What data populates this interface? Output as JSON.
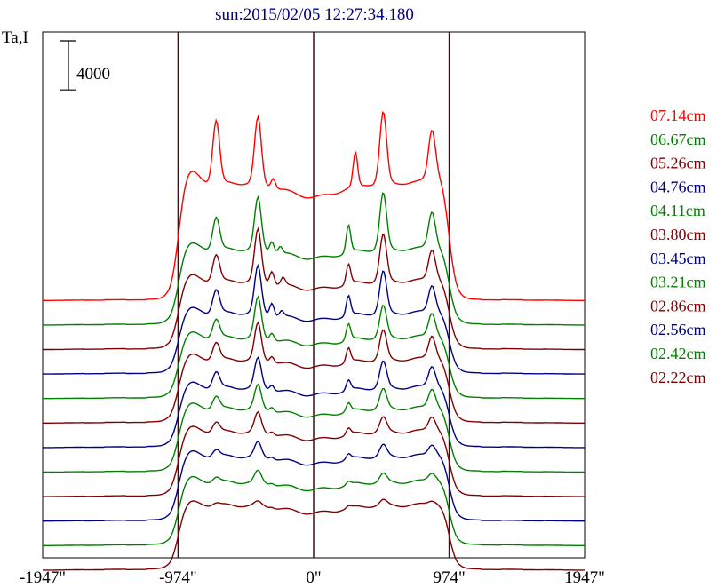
{
  "chart_data": {
    "type": "line",
    "title": "sun:2015/02/05 12:27:34.180",
    "ylabel": "Ta,I",
    "xlabel": "",
    "scale_bar_label": "4000",
    "scale_bar_value": 4000,
    "x_ticks": [
      -1947,
      -974,
      0,
      974,
      1947
    ],
    "x_tick_labels": [
      "-1947\"",
      "-974\"",
      "0\"",
      "974\"",
      "1947\""
    ],
    "xlim": [
      -1947,
      1947
    ],
    "vertical_lines_at": [
      -974,
      0,
      974
    ],
    "grid": false,
    "legend_position": "right",
    "series_shape_units": "thousands of Ta,I",
    "series": [
      {
        "name": "07.14cm",
        "color": "#ff0000",
        "offset": 20700,
        "shape": {
          "disk": 9.6,
          "limb": 1.2,
          "peaks": [
            [
              -700,
              10.2
            ],
            [
              -400,
              10.8
            ],
            [
              -290,
              1.6
            ],
            [
              300,
              5.5
            ],
            [
              500,
              11.5
            ],
            [
              850,
              7.3
            ]
          ]
        }
      },
      {
        "name": "06.67cm",
        "color": "#007f00",
        "offset": 18700,
        "shape": {
          "disk": 6.2,
          "limb": 0.6,
          "peaks": [
            [
              -700,
              5.2
            ],
            [
              -400,
              8.4
            ],
            [
              -300,
              1.8
            ],
            [
              -240,
              1.1
            ],
            [
              250,
              4.4
            ],
            [
              500,
              9.1
            ],
            [
              850,
              5.5
            ]
          ]
        }
      },
      {
        "name": "05.26cm",
        "color": "#7f0000",
        "offset": 16700,
        "shape": {
          "disk": 5.6,
          "limb": 0.6,
          "peaks": [
            [
              -700,
              4.3
            ],
            [
              -400,
              8.4
            ],
            [
              -300,
              2.1
            ],
            [
              -220,
              1.2
            ],
            [
              250,
              3.2
            ],
            [
              500,
              7.5
            ],
            [
              850,
              4.5
            ]
          ]
        }
      },
      {
        "name": "04.76cm",
        "color": "#000080",
        "offset": 14700,
        "shape": {
          "disk": 5.0,
          "limb": 0.5,
          "peaks": [
            [
              -700,
              3.8
            ],
            [
              -400,
              7.6
            ],
            [
              -300,
              2.1
            ],
            [
              -230,
              0.9
            ],
            [
              250,
              3.2
            ],
            [
              500,
              6.7
            ],
            [
              850,
              4.0
            ]
          ]
        }
      },
      {
        "name": "04.11cm",
        "color": "#007f00",
        "offset": 12700,
        "shape": {
          "disk": 5.0,
          "limb": 0.5,
          "peaks": [
            [
              -700,
              3.0
            ],
            [
              -400,
              6.5
            ],
            [
              -300,
              1.2
            ],
            [
              250,
              2.6
            ],
            [
              500,
              5.1
            ],
            [
              850,
              3.5
            ]
          ]
        }
      },
      {
        "name": "03.80cm",
        "color": "#7f0000",
        "offset": 10700,
        "shape": {
          "disk": 5.2,
          "limb": 0.5,
          "peaks": [
            [
              -700,
              2.8
            ],
            [
              -400,
              5.9
            ],
            [
              -300,
              1.0
            ],
            [
              250,
              2.3
            ],
            [
              500,
              4.7
            ],
            [
              850,
              3.4
            ]
          ]
        }
      },
      {
        "name": "03.45cm",
        "color": "#000080",
        "offset": 8700,
        "shape": {
          "disk": 4.9,
          "limb": 0.5,
          "peaks": [
            [
              -700,
              2.6
            ],
            [
              -400,
              4.8
            ],
            [
              -300,
              0.9
            ],
            [
              250,
              1.6
            ],
            [
              500,
              4.2
            ],
            [
              850,
              3.0
            ]
          ]
        }
      },
      {
        "name": "03.21cm",
        "color": "#007f00",
        "offset": 6700,
        "shape": {
          "disk": 5.2,
          "limb": 0.5,
          "peaks": [
            [
              -700,
              2.0
            ],
            [
              -400,
              3.8
            ],
            [
              -300,
              0.7
            ],
            [
              250,
              1.3
            ],
            [
              500,
              3.1
            ],
            [
              850,
              2.7
            ]
          ]
        }
      },
      {
        "name": "02.86cm",
        "color": "#7f0000",
        "offset": 4700,
        "shape": {
          "disk": 5.3,
          "limb": 0.5,
          "peaks": [
            [
              -700,
              1.6
            ],
            [
              -400,
              3.1
            ],
            [
              -300,
              0.5
            ],
            [
              250,
              1.0
            ],
            [
              500,
              2.3
            ],
            [
              850,
              2.0
            ]
          ]
        }
      },
      {
        "name": "02.56cm",
        "color": "#000080",
        "offset": 2700,
        "shape": {
          "disk": 5.3,
          "limb": 0.5,
          "peaks": [
            [
              -700,
              1.1
            ],
            [
              -400,
              2.3
            ],
            [
              -300,
              0.4
            ],
            [
              250,
              0.8
            ],
            [
              500,
              1.8
            ],
            [
              850,
              1.4
            ]
          ]
        }
      },
      {
        "name": "02.42cm",
        "color": "#007f00",
        "offset": 700,
        "shape": {
          "disk": 5.2,
          "limb": 0.5,
          "peaks": [
            [
              -700,
              0.8
            ],
            [
              -400,
              1.8
            ],
            [
              -300,
              0.3
            ],
            [
              250,
              0.5
            ],
            [
              500,
              1.3
            ],
            [
              850,
              1.0
            ]
          ]
        }
      },
      {
        "name": "02.22cm",
        "color": "#7f0000",
        "offset": -1300,
        "shape": {
          "disk": 5.3,
          "limb": 0.4,
          "peaks": [
            [
              -700,
              0.4
            ],
            [
              -400,
              0.6
            ],
            [
              -300,
              0.2
            ],
            [
              250,
              0.3
            ],
            [
              500,
              0.8
            ],
            [
              850,
              0.4
            ]
          ]
        }
      }
    ]
  }
}
